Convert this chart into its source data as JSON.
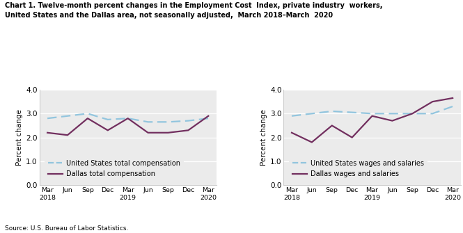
{
  "title_line1": "Chart 1. Twelve-month percent changes in the Employment Cost  Index, private industry  workers,",
  "title_line2": "United States and the Dallas area, not seasonally adjusted,  March 2018–March  2020",
  "left_us_total_comp": [
    2.8,
    2.9,
    3.0,
    2.75,
    2.8,
    2.65,
    2.65,
    2.7,
    2.8
  ],
  "left_dallas_total_comp": [
    2.2,
    2.1,
    2.8,
    2.3,
    2.8,
    2.2,
    2.2,
    2.3,
    2.9
  ],
  "right_us_wages_salaries": [
    2.9,
    3.0,
    3.1,
    3.05,
    3.0,
    3.0,
    3.0,
    3.0,
    3.3
  ],
  "right_dallas_wages_salaries": [
    2.2,
    1.8,
    2.5,
    2.0,
    2.9,
    2.7,
    3.0,
    3.5,
    3.65
  ],
  "ylabel": "Percent change",
  "ylim": [
    0.0,
    4.0
  ],
  "yticks": [
    0.0,
    1.0,
    2.0,
    3.0,
    4.0
  ],
  "source": "Source: U.S. Bureau of Labor Statistics.",
  "us_color": "#92C5DE",
  "dallas_color": "#722F5F",
  "legend_left_1": "United States total compensation",
  "legend_left_2": "Dallas total compensation",
  "legend_right_1": "United States wages and salaries",
  "legend_right_2": "Dallas wages and salaries",
  "bg_color": "#EBEBEB"
}
